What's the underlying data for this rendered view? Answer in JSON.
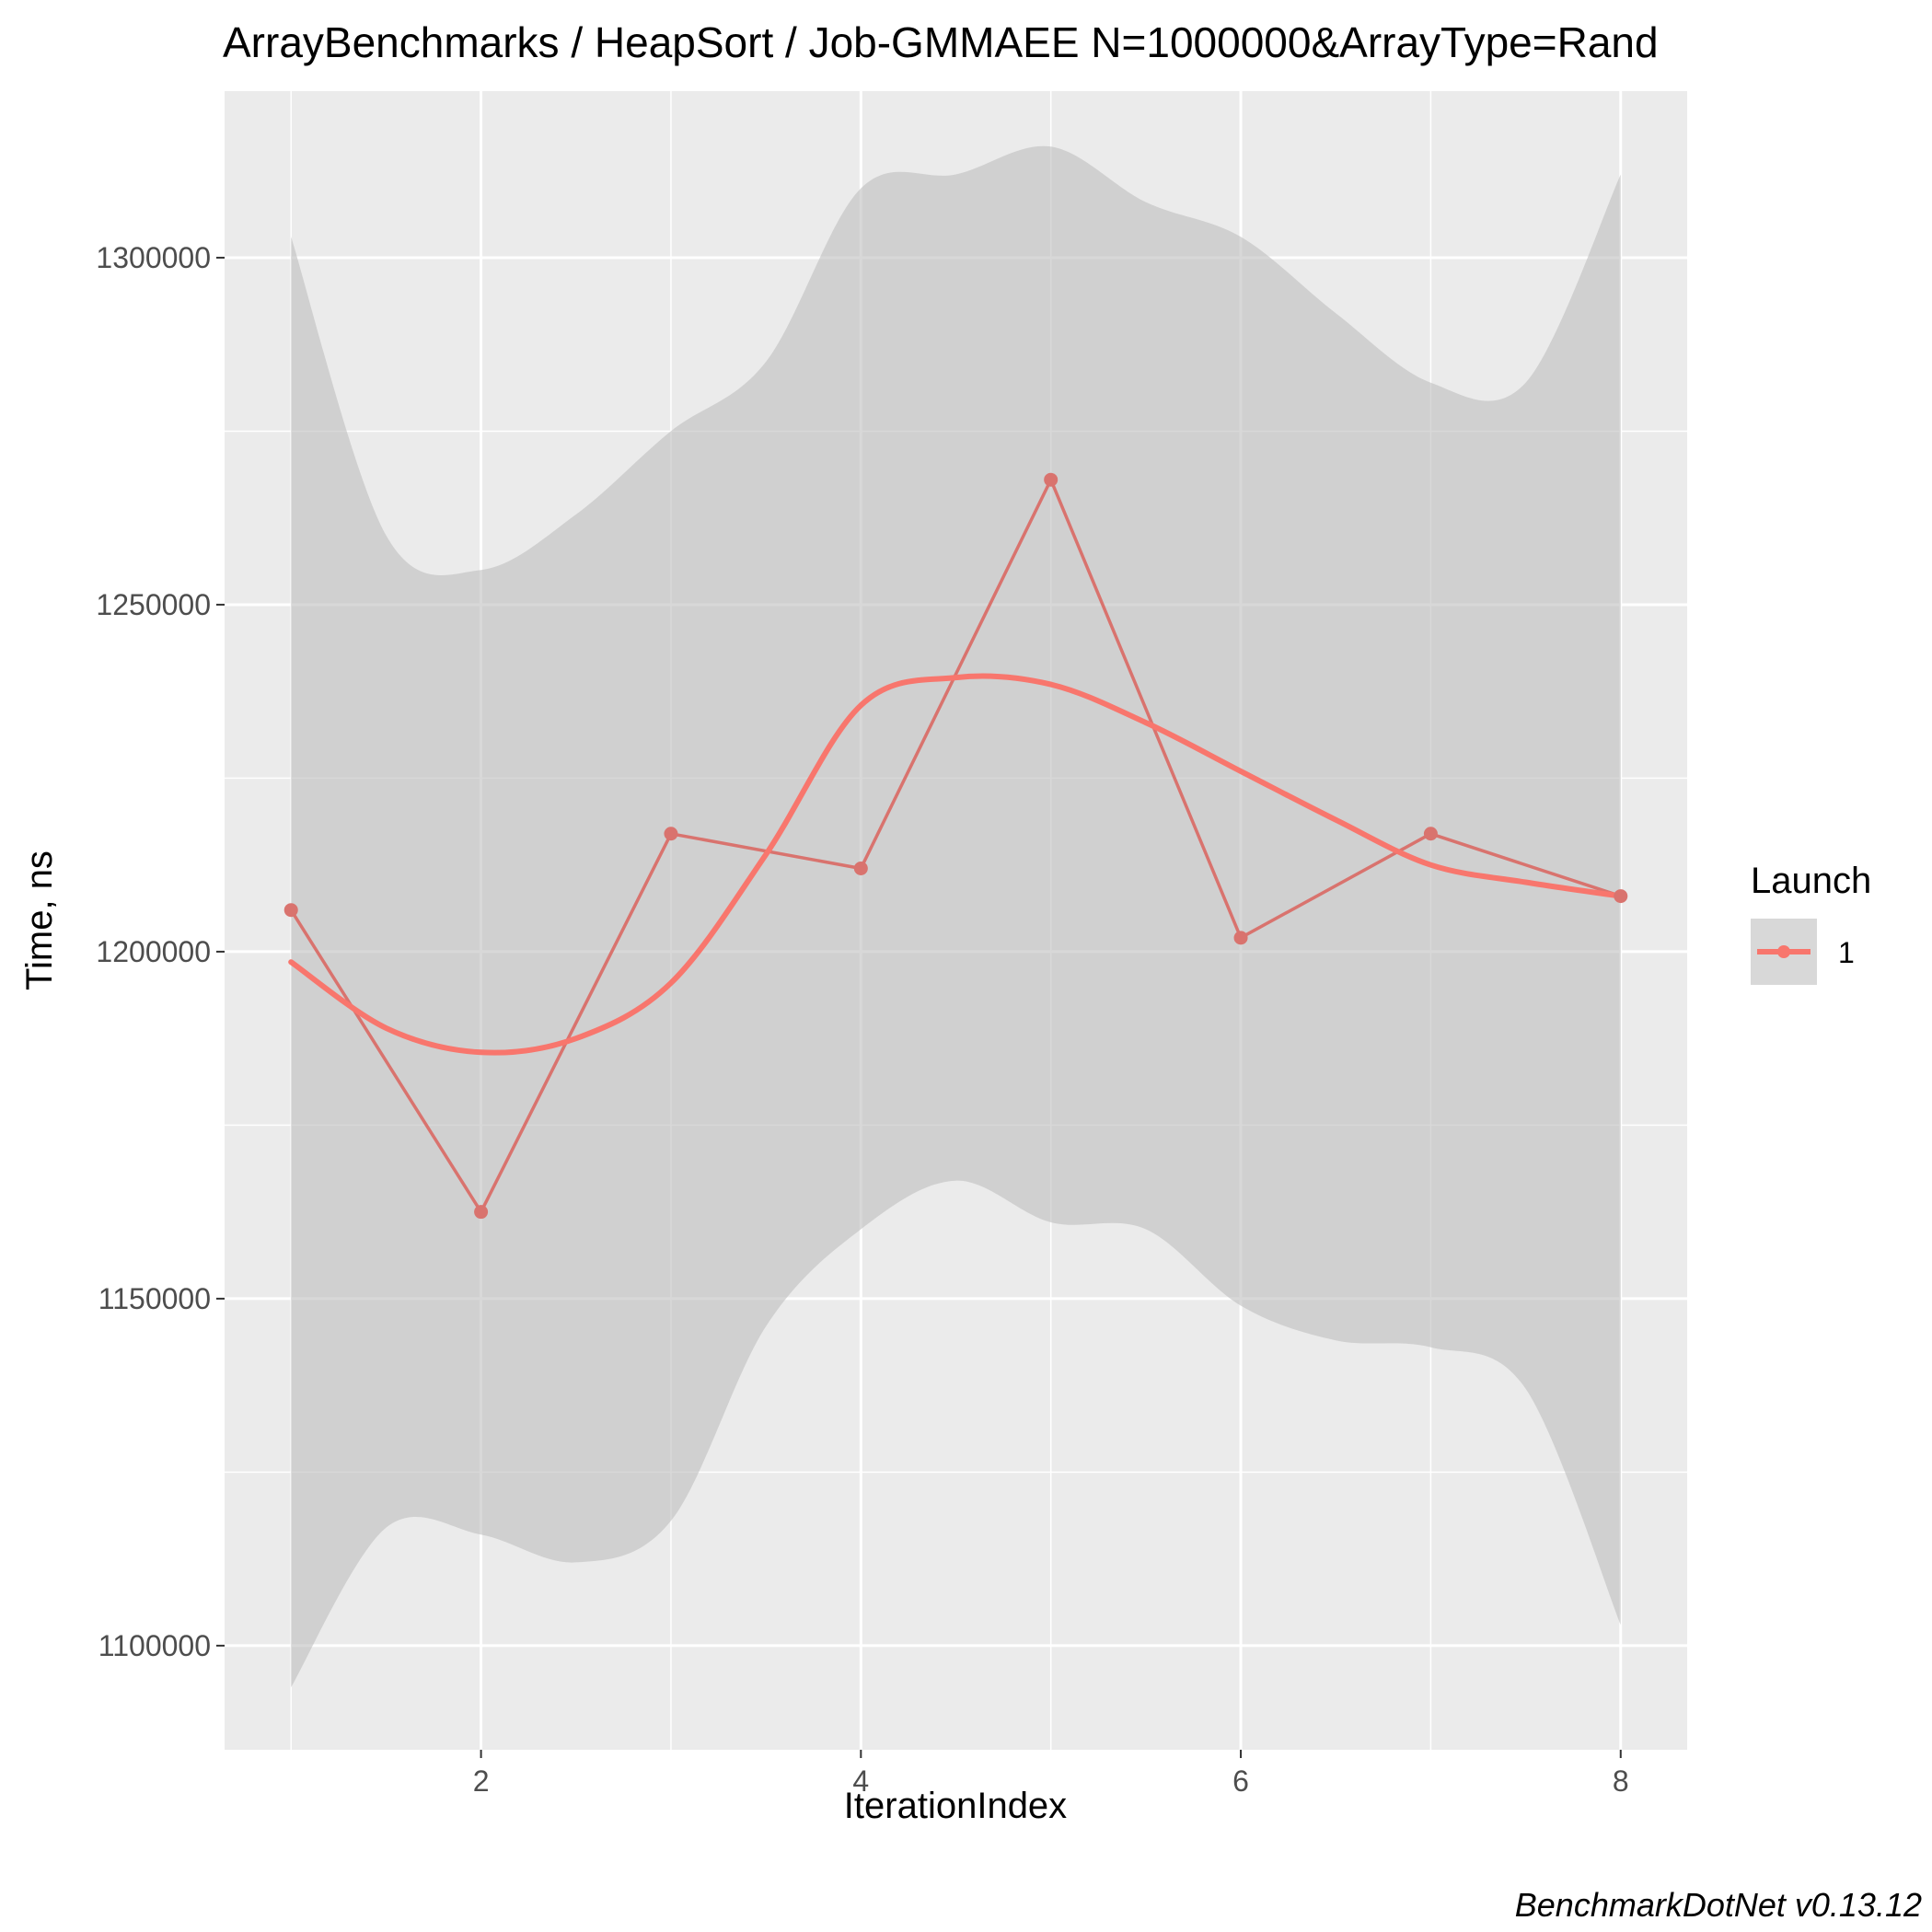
{
  "chart_data": {
    "type": "line",
    "title": "ArrayBenchmarks / HeapSort / Job-GMMAEE N=1000000&ArrayType=Rand",
    "xlabel": "IterationIndex",
    "ylabel": "Time, ns",
    "caption": "BenchmarkDotNet v0.13.12",
    "xlim": [
      0.65,
      8.35
    ],
    "ylim": [
      1085000,
      1324000
    ],
    "x_ticks": [
      2,
      4,
      6,
      8
    ],
    "y_ticks": [
      1100000,
      1150000,
      1200000,
      1250000,
      1300000
    ],
    "legend": {
      "title": "Launch",
      "position": "right",
      "entries": [
        "1"
      ]
    },
    "series": [
      {
        "name": "1",
        "color": "#F8766D",
        "x": [
          1,
          2,
          3,
          4,
          5,
          6,
          7,
          8
        ],
        "values": [
          1206000,
          1162500,
          1217000,
          1212000,
          1268000,
          1202000,
          1217000,
          1208000
        ]
      }
    ],
    "smooth": {
      "color": "#F8766D",
      "x": [
        1,
        1.5,
        2,
        2.5,
        3,
        3.5,
        4,
        4.5,
        5,
        5.5,
        6,
        6.5,
        7,
        7.5,
        8
      ],
      "y": [
        1198500,
        1189000,
        1185500,
        1187500,
        1195500,
        1214000,
        1235500,
        1239500,
        1238500,
        1233000,
        1226000,
        1219000,
        1212500,
        1210000,
        1208000
      ],
      "band_upper": [
        1303000,
        1260000,
        1255000,
        1263000,
        1275000,
        1285000,
        1310000,
        1312000,
        1316000,
        1308000,
        1303000,
        1292000,
        1282000,
        1282000,
        1312000
      ],
      "band_lower": [
        1094000,
        1117000,
        1116000,
        1112000,
        1118000,
        1146000,
        1160000,
        1167000,
        1161000,
        1160000,
        1149000,
        1144000,
        1143000,
        1137000,
        1103000
      ]
    },
    "colors": {
      "panel_background": "#EBEBEB",
      "grid_major": "#FFFFFF",
      "band_fill": "#BEBEBE",
      "line": "#F8766D",
      "point_line": "#D9736E"
    }
  }
}
